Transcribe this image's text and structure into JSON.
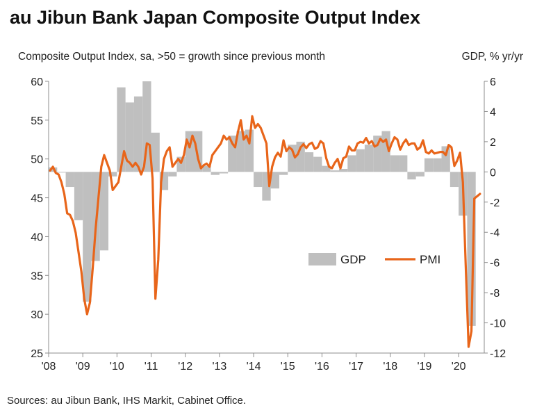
{
  "title": "au Jibun Bank Japan Composite Output Index",
  "subtitle_left": "Composite Output Index, sa, >50 = growth since previous month",
  "subtitle_right": "GDP, % yr/yr",
  "source": "Sources: au Jibun Bank, IHS Markit, Cabinet Office.",
  "colors": {
    "gdp": "#bfbfbf",
    "pmi": "#e8651a",
    "axis": "#8c8c8c"
  },
  "chart_data": {
    "type": "bar+line",
    "x_start": 2008.0,
    "x_end": 2020.75,
    "x_ticks": [
      "'08",
      "'09",
      "'10",
      "'11",
      "'12",
      "'13",
      "'14",
      "'15",
      "'16",
      "'17",
      "'18",
      "'19",
      "'20"
    ],
    "y_left": {
      "label": "Composite Output Index",
      "range": [
        25,
        60
      ],
      "ticks": [
        25,
        30,
        35,
        40,
        45,
        50,
        55,
        60
      ]
    },
    "y_right": {
      "label": "GDP, % yr/yr",
      "range": [
        -12,
        6
      ],
      "ticks": [
        -12,
        -10,
        -8,
        -6,
        -4,
        -2,
        0,
        2,
        4,
        6
      ]
    },
    "legend": {
      "position": "center-right",
      "items": [
        "GDP",
        "PMI"
      ]
    },
    "series": [
      {
        "name": "GDP",
        "axis": "right",
        "kind": "bar",
        "quarterly_start": "2008Q1",
        "values": [
          0.3,
          0.0,
          -1.0,
          -3.2,
          -8.6,
          -5.9,
          -5.2,
          -0.3,
          5.6,
          4.6,
          5.0,
          6.0,
          2.6,
          -1.2,
          -0.3,
          1.0,
          2.7,
          2.7,
          0.4,
          -0.2,
          -0.1,
          2.4,
          2.7,
          2.8,
          -1.0,
          -1.9,
          -1.1,
          -0.2,
          1.8,
          2.0,
          1.3,
          1.0,
          0.4,
          0.1,
          0.2,
          1.1,
          1.5,
          1.8,
          2.4,
          2.7,
          1.1,
          1.1,
          -0.5,
          -0.3,
          0.9,
          0.9,
          1.7,
          -1.0,
          -2.9,
          -10.2
        ]
      },
      {
        "name": "PMI",
        "axis": "left",
        "kind": "line",
        "monthly_start": "2008-01",
        "values": [
          48.5,
          49.0,
          48.2,
          48.0,
          47.0,
          45.5,
          43.0,
          42.8,
          42.0,
          40.5,
          38.0,
          35.5,
          32.0,
          30.0,
          31.5,
          36.0,
          41.0,
          45.0,
          49.0,
          50.5,
          49.5,
          48.5,
          46.0,
          46.5,
          47.0,
          49.0,
          51.0,
          49.8,
          49.5,
          49.0,
          49.5,
          49.0,
          48.0,
          49.0,
          52.0,
          51.8,
          47.5,
          32.0,
          37.0,
          47.0,
          50.0,
          51.0,
          51.5,
          49.0,
          49.5,
          50.0,
          49.5,
          50.5,
          52.5,
          51.5,
          53.0,
          52.0,
          50.0,
          48.8,
          49.2,
          49.4,
          49.0,
          50.5,
          51.0,
          51.5,
          52.0,
          53.0,
          52.5,
          52.8,
          52.0,
          51.5,
          53.5,
          55.0,
          52.5,
          53.0,
          52.0,
          55.5,
          54.0,
          54.5,
          54.0,
          53.0,
          52.0,
          46.5,
          49.0,
          50.2,
          50.8,
          50.3,
          52.4,
          51.0,
          51.5,
          51.2,
          50.2,
          50.6,
          51.5,
          51.9,
          51.4,
          51.9,
          52.1,
          51.3,
          51.5,
          52.3,
          52.0,
          50.1,
          49.0,
          48.8,
          49.5,
          50.0,
          48.8,
          50.1,
          50.3,
          51.6,
          51.1,
          51.1,
          52.0,
          52.2,
          52.1,
          52.7,
          52.0,
          52.3,
          51.6,
          51.8,
          52.6,
          52.2,
          52.5,
          51.0,
          52.0,
          52.8,
          52.5,
          51.2,
          52.0,
          52.5,
          51.8,
          52.0,
          52.0,
          51.2,
          51.5,
          52.4,
          50.9,
          50.7,
          51.1,
          50.7,
          50.8,
          50.9,
          50.9,
          50.5,
          51.8,
          51.5,
          49.1,
          49.8,
          50.8,
          47.0,
          36.2,
          25.8,
          27.8,
          44.9,
          45.2,
          45.5
        ]
      }
    ]
  }
}
